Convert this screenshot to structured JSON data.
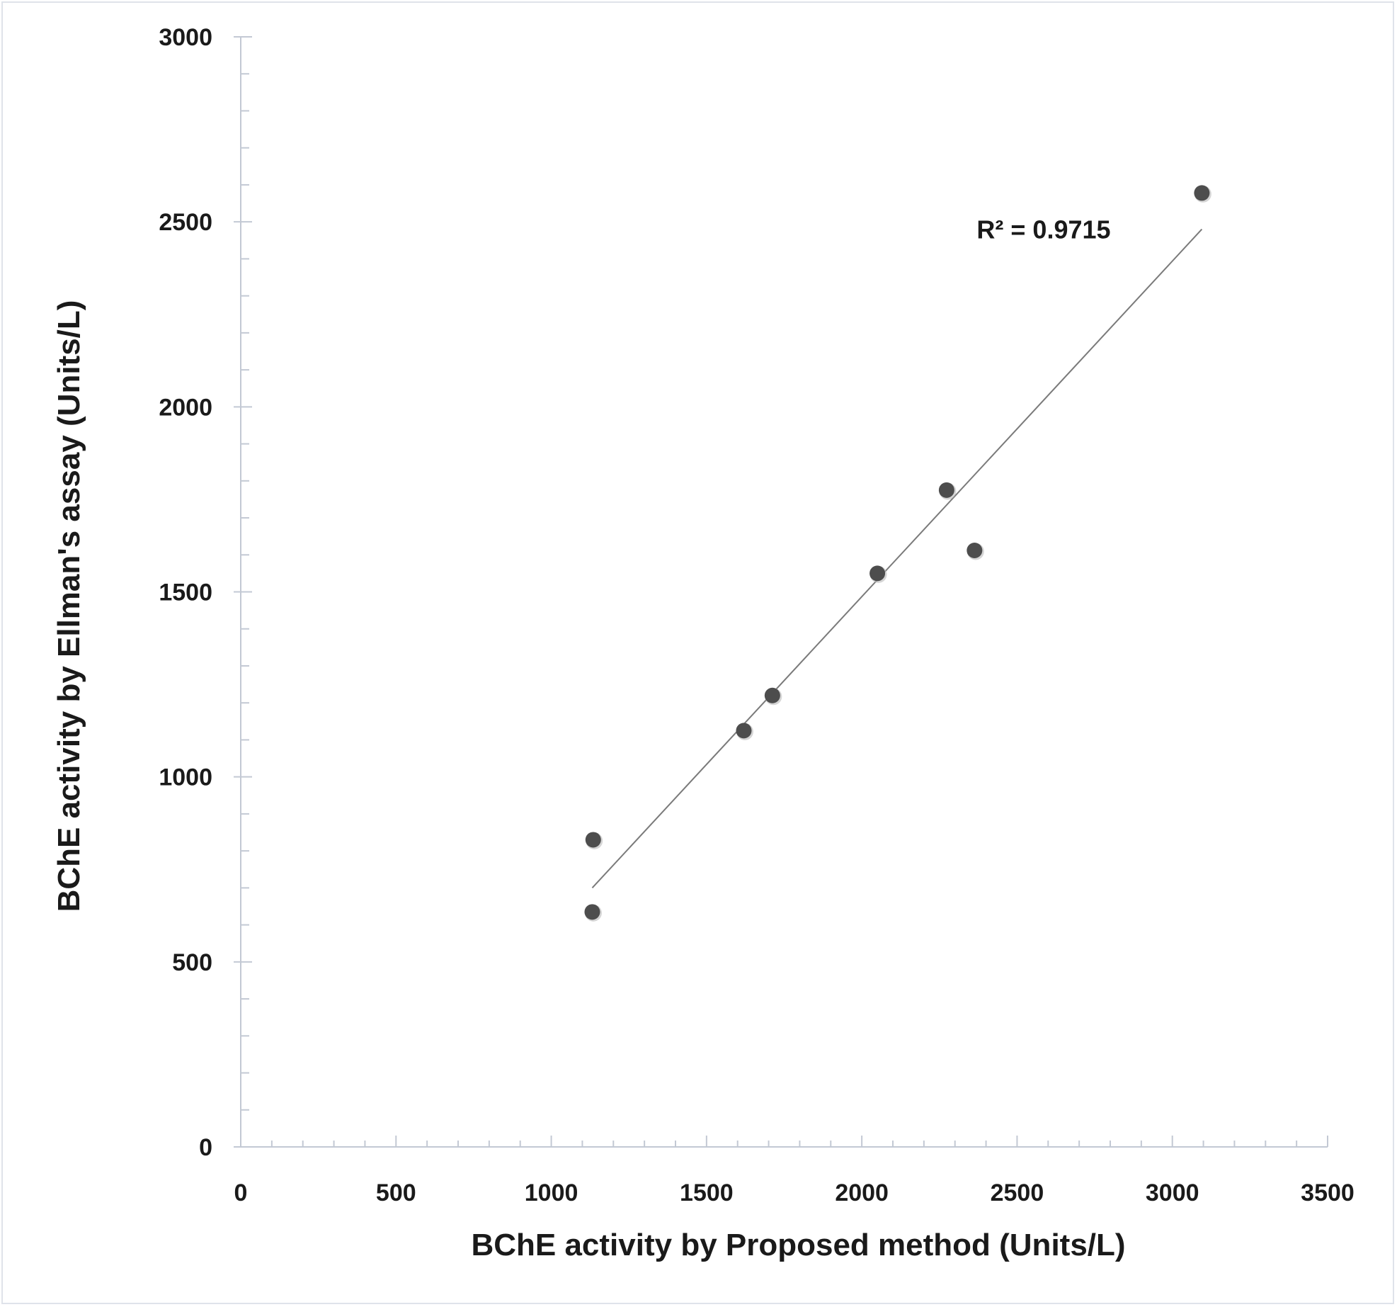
{
  "chart_data": {
    "type": "scatter",
    "title": "",
    "xlabel": "BChE activity by Proposed method (Units/L)",
    "ylabel": "BChE activity by Ellman's assay (Units/L)",
    "xlim": [
      0,
      3500
    ],
    "ylim": [
      0,
      3000
    ],
    "xticks": [
      "0",
      "500",
      "1000",
      "1500",
      "2000",
      "2500",
      "3000",
      "3500"
    ],
    "yticks": [
      "0",
      "500",
      "1000",
      "1500",
      "2000",
      "2500",
      "3000"
    ],
    "grid": false,
    "legend": "none",
    "series": [
      {
        "points": [
          {
            "x": 1135,
            "y": 830
          },
          {
            "x": 1132,
            "y": 635
          },
          {
            "x": 1620,
            "y": 1125
          },
          {
            "x": 1712,
            "y": 1220
          },
          {
            "x": 2050,
            "y": 1550
          },
          {
            "x": 2273,
            "y": 1775
          },
          {
            "x": 2363,
            "y": 1612
          },
          {
            "x": 3095,
            "y": 2578
          }
        ],
        "color": "#4d4d4d"
      }
    ],
    "trendline": {
      "from": [
        1132,
        700
      ],
      "to": [
        3095,
        2480
      ],
      "color": "#7a7a7a"
    },
    "annotations": [
      {
        "text": "R² = 0.9715",
        "x": 2370,
        "y": 2455
      }
    ]
  }
}
